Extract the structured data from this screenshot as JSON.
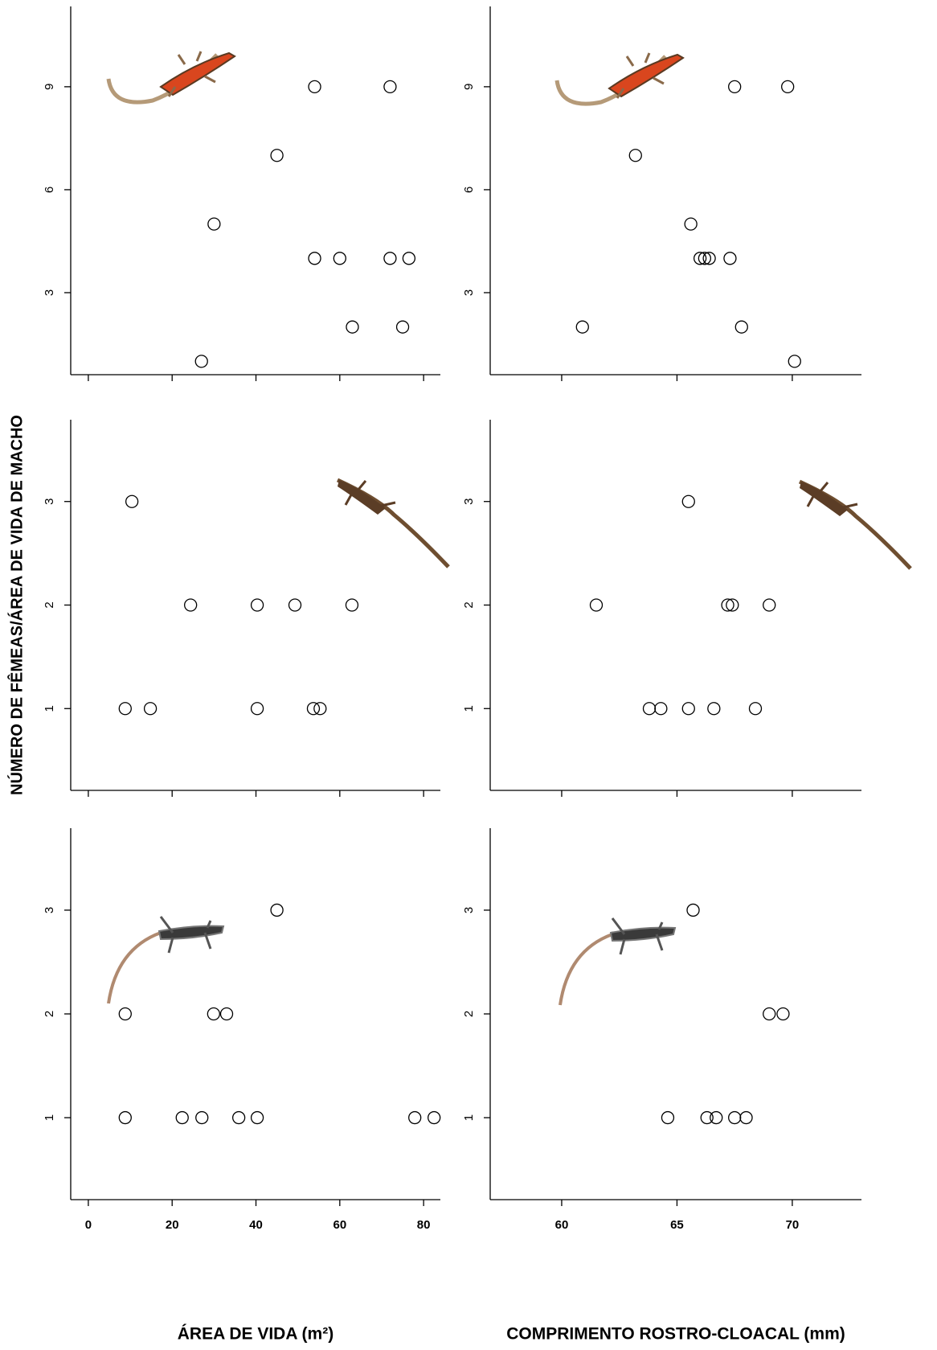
{
  "chart_data": [
    {
      "type": "scatter",
      "x": [
        27,
        30,
        45,
        54,
        72,
        54,
        60,
        72,
        76.5,
        63,
        75
      ],
      "values": [
        1,
        5,
        7,
        9,
        9,
        4,
        4,
        4,
        4,
        2,
        2
      ],
      "xlim": [
        -4.2,
        84
      ],
      "ylim": [
        0.61,
        11.34
      ],
      "xticks": [
        0,
        20,
        40,
        60,
        80
      ],
      "yticks": [
        3,
        6,
        9
      ],
      "color": "#000000"
    },
    {
      "type": "scatter",
      "x": [
        67.5,
        69.8,
        63.2,
        65.6,
        66.0,
        66.2,
        66.4,
        67.3,
        60.9,
        67.8,
        70.1
      ],
      "values": [
        9,
        9,
        7,
        5,
        4,
        4,
        4,
        4,
        2,
        2,
        1
      ],
      "xlim": [
        56.9,
        73.0
      ],
      "ylim": [
        0.61,
        11.34
      ],
      "xticks": [
        60,
        65,
        70
      ],
      "yticks": [
        3,
        6,
        9
      ],
      "color": "#000000"
    },
    {
      "type": "scatter",
      "x": [
        10.4,
        24.4,
        40.3,
        49.3,
        62.9,
        8.8,
        14.8,
        40.3,
        53.7,
        55.3
      ],
      "values": [
        3,
        2,
        2,
        2,
        2,
        1,
        1,
        1,
        1,
        1
      ],
      "xlim": [
        -4.2,
        84
      ],
      "ylim": [
        0.21,
        3.79
      ],
      "xticks": [
        0,
        20,
        40,
        60,
        80
      ],
      "yticks": [
        1,
        2,
        3
      ],
      "color": "#000000",
      "ylabel": "NÚMERO DE FÊMEAS/ÁREA DE VIDA DE MACHO"
    },
    {
      "type": "scatter",
      "x": [
        65.5,
        61.5,
        67.2,
        67.4,
        69.0,
        63.8,
        64.3,
        65.5,
        66.6,
        68.4
      ],
      "values": [
        3,
        2,
        2,
        2,
        2,
        1,
        1,
        1,
        1,
        1
      ],
      "xlim": [
        56.9,
        73.0
      ],
      "ylim": [
        0.21,
        3.79
      ],
      "xticks": [
        60,
        65,
        70
      ],
      "yticks": [
        1,
        2,
        3
      ],
      "color": "#000000"
    },
    {
      "type": "scatter",
      "x": [
        45,
        8.8,
        29.9,
        33.0,
        8.8,
        22.4,
        27.1,
        35.9,
        40.3,
        77.9,
        82.5
      ],
      "values": [
        3,
        2,
        2,
        2,
        1,
        1,
        1,
        1,
        1,
        1,
        1
      ],
      "xlim": [
        -4.2,
        84
      ],
      "ylim": [
        0.21,
        3.79
      ],
      "xticks": [
        0,
        20,
        40,
        60,
        80
      ],
      "yticks": [
        1,
        2,
        3
      ],
      "color": "#000000",
      "xlabel": "ÁREA DE VIDA (m²)"
    },
    {
      "type": "scatter",
      "x": [
        65.7,
        69.0,
        69.6,
        64.6,
        66.3,
        66.7,
        67.5,
        68.0
      ],
      "values": [
        3,
        2,
        2,
        1,
        1,
        1,
        1,
        1
      ],
      "xlim": [
        56.9,
        73.0
      ],
      "ylim": [
        0.21,
        3.79
      ],
      "xticks": [
        60,
        65,
        70
      ],
      "yticks": [
        1,
        2,
        3
      ],
      "color": "#000000",
      "xlabel": "COMPRIMENTO ROSTRO-CLOACAL (mm)"
    }
  ]
}
